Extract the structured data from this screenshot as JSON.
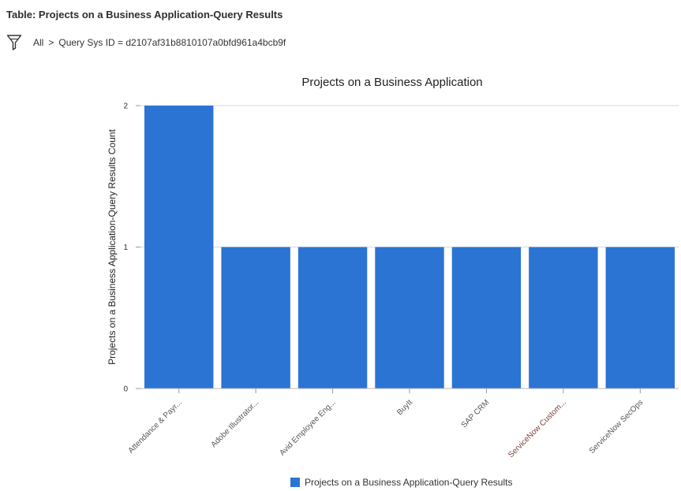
{
  "header": {
    "table_title": "Table: Projects on a Business Application-Query Results"
  },
  "breadcrumb": {
    "all": "All",
    "separator": ">",
    "condition": "Query Sys ID = d2107af31b8810107a0bfd961a4bcb9f"
  },
  "icons": {
    "filter": "funnel-filter-icon"
  },
  "chart_data": {
    "type": "bar",
    "title": "Projects on a Business Application",
    "xlabel": "",
    "ylabel": "Projects on a Business Application-Query Results Count",
    "ylim": [
      0,
      2
    ],
    "yticks": [
      0,
      1,
      2
    ],
    "grid": true,
    "legend_position": "bottom",
    "bar_color": "#2b74d4",
    "categories": [
      "Attendance & Payr...",
      "Adobe Illustrator...",
      "Avid Employee Eng...",
      "BuyIt",
      "SAP CRM",
      "ServiceNow Custom...",
      "ServiceNow SecOps"
    ],
    "series": [
      {
        "name": "Projects on a Business Application-Query Results",
        "values": [
          2,
          1,
          1,
          1,
          1,
          1,
          1
        ]
      }
    ]
  }
}
